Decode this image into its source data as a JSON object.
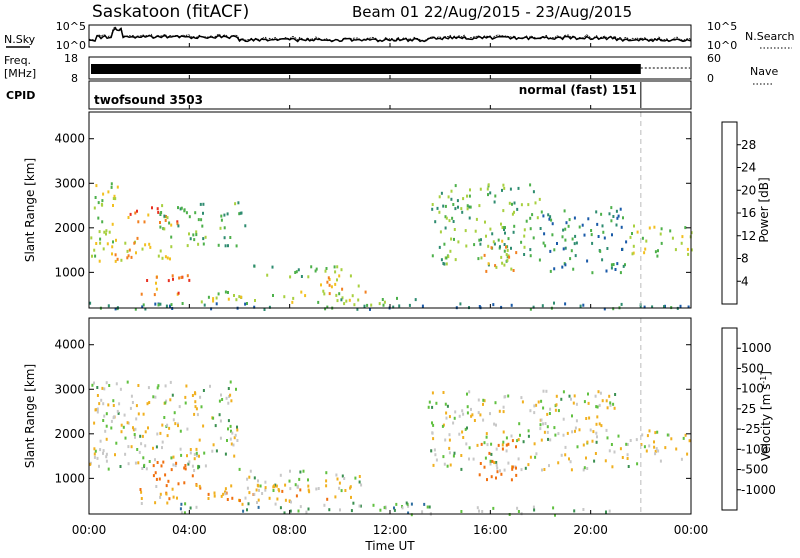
{
  "header": {
    "station": "Saskatoon (fitACF)",
    "beam_dates": "Beam 01  22/Aug/2015 - 23/Aug/2015"
  },
  "noise_panel": {
    "left_label": "N.Sky",
    "left_ticks": [
      "10^5",
      "10^0"
    ],
    "right_ticks": [
      "10^5",
      "10^0"
    ],
    "right_label": "N.Search"
  },
  "freq_panel": {
    "left_label_line1": "Freq.",
    "left_label_line2": "[MHz]",
    "left_ticks": [
      "18",
      "8"
    ],
    "right_ticks": [
      "60",
      "0"
    ],
    "right_label": "Nave"
  },
  "cpid_panel": {
    "label": "CPID",
    "mode1": "twofsound 3503",
    "mode2": "normal (fast) 151",
    "mode_change_hour": 22.0
  },
  "x_axis": {
    "ticks": [
      "00:00",
      "04:00",
      "08:00",
      "12:00",
      "16:00",
      "20:00",
      "00:00"
    ],
    "label": "Time UT"
  },
  "chart_data": [
    {
      "type": "heatmap",
      "panel": "power",
      "xlabel": "Time UT",
      "ylabel": "Slant Range [km]",
      "xlim": [
        0,
        24
      ],
      "ylim": [
        200,
        4600
      ],
      "yticks": [
        1000,
        2000,
        3000,
        4000
      ],
      "colorbar_label": "Power [dB]",
      "colorbar_ticks": [
        "28",
        "24",
        "20",
        "16",
        "12",
        "8",
        "4"
      ],
      "colorbar_colors": [
        "#2030d0",
        "#1a5aa8",
        "#2e8c70",
        "#4db04a",
        "#a8d040",
        "#f2c020",
        "#f28020",
        "#e83020"
      ],
      "regions": [
        {
          "t0": 0.0,
          "t1": 1.2,
          "r0": 1200,
          "r1": 3100,
          "level": 16
        },
        {
          "t0": 0.4,
          "t1": 3.2,
          "r0": 1300,
          "r1": 1800,
          "level": 20
        },
        {
          "t0": 1.3,
          "t1": 3.5,
          "r0": 2000,
          "r1": 2500,
          "level": 22
        },
        {
          "t0": 2.8,
          "t1": 6.2,
          "r0": 1600,
          "r1": 2600,
          "level": 12
        },
        {
          "t0": 2.0,
          "t1": 4.0,
          "r0": 500,
          "r1": 1000,
          "level": 24
        },
        {
          "t0": 4.0,
          "t1": 10.5,
          "r0": 350,
          "r1": 600,
          "level": 14
        },
        {
          "t0": 6.5,
          "t1": 10.5,
          "r0": 900,
          "r1": 1200,
          "level": 12
        },
        {
          "t0": 9.0,
          "t1": 11.0,
          "r0": 500,
          "r1": 1000,
          "level": 18
        },
        {
          "t0": 10.0,
          "t1": 13.5,
          "r0": 250,
          "r1": 450,
          "level": 10
        },
        {
          "t0": 13.5,
          "t1": 18.0,
          "r0": 1200,
          "r1": 3000,
          "level": 10
        },
        {
          "t0": 15.5,
          "t1": 17.0,
          "r0": 1000,
          "r1": 1800,
          "level": 20
        },
        {
          "t0": 18.0,
          "t1": 21.5,
          "r0": 1000,
          "r1": 2500,
          "level": 8
        },
        {
          "t0": 21.5,
          "t1": 24.0,
          "r0": 1300,
          "r1": 2100,
          "level": 14
        },
        {
          "t0": 0.0,
          "t1": 24.0,
          "r0": 200,
          "r1": 350,
          "level": 8
        }
      ]
    },
    {
      "type": "heatmap",
      "panel": "velocity",
      "xlabel": "Time UT",
      "ylabel": "Slant Range [km]",
      "xlim": [
        0,
        24
      ],
      "ylim": [
        200,
        4600
      ],
      "yticks": [
        1000,
        2000,
        3000,
        4000
      ],
      "colorbar_label": "Velocity [m s^-1]",
      "colorbar_ticks": [
        "1000",
        "500",
        "100",
        "25",
        "-25",
        "-100",
        "-500",
        "-1000"
      ],
      "colorbar_colors": [
        "#2040c0",
        "#2e6ea0",
        "#3a9050",
        "#60c040",
        "#c8c8c8",
        "#f0b020",
        "#f07010",
        "#e02010"
      ],
      "regions": [
        {
          "t0": 0.0,
          "t1": 6.0,
          "r0": 1200,
          "r1": 3200,
          "vel": 0
        },
        {
          "t0": 2.5,
          "t1": 4.5,
          "r0": 800,
          "r1": 1400,
          "vel": -300
        },
        {
          "t0": 2.0,
          "t1": 10.5,
          "r0": 450,
          "r1": 900,
          "vel": -60
        },
        {
          "t0": 6.0,
          "t1": 11.0,
          "r0": 700,
          "r1": 1200,
          "vel": 0
        },
        {
          "t0": 3.5,
          "t1": 13.5,
          "r0": 250,
          "r1": 500,
          "vel": 60
        },
        {
          "t0": 13.5,
          "t1": 21.5,
          "r0": 1200,
          "r1": 3000,
          "vel": 0
        },
        {
          "t0": 15.5,
          "t1": 17.0,
          "r0": 1000,
          "r1": 1900,
          "vel": -300
        },
        {
          "t0": 21.5,
          "t1": 24.0,
          "r0": 1300,
          "r1": 2100,
          "vel": 0
        },
        {
          "t0": 12.0,
          "t1": 21.0,
          "r0": 200,
          "r1": 400,
          "vel": 40
        }
      ]
    }
  ]
}
